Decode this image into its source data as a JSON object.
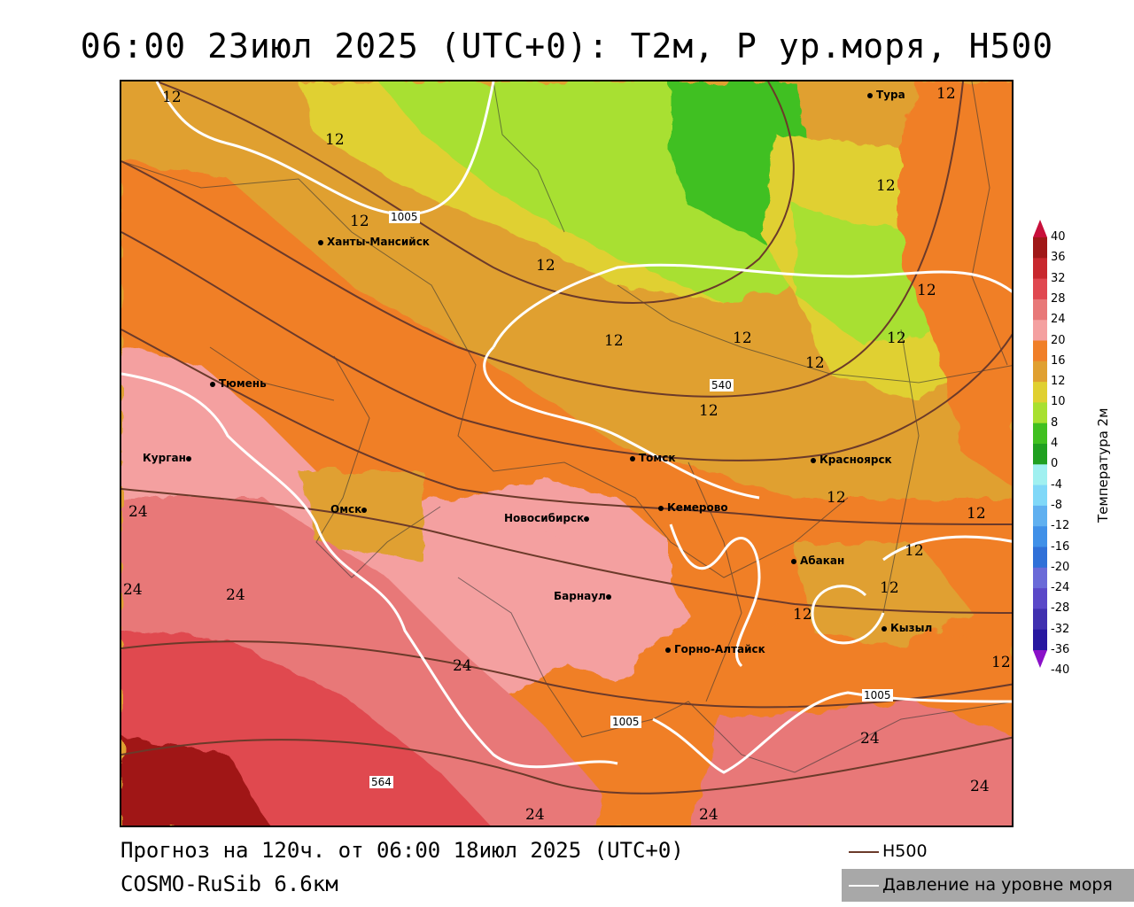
{
  "title": "06:00 23июл 2025 (UTC+0): T2м, P ур.моря, H500",
  "footer": {
    "forecast": "Прогноз на 120ч. от 06:00 18июл 2025 (UTC+0)",
    "model": "COSMO-RuSib 6.6км"
  },
  "legend": {
    "h500": "H500",
    "pressure": "Давление на уровне моря"
  },
  "colorbar": {
    "title": "Температура 2м",
    "levels": [
      "40",
      "36",
      "32",
      "28",
      "24",
      "20",
      "16",
      "12",
      "10",
      "8",
      "4",
      "0",
      "-4",
      "-8",
      "-12",
      "-16",
      "-20",
      "-24",
      "-28",
      "-32",
      "-36",
      "-40"
    ],
    "colors": [
      "#c8103a",
      "#a01818",
      "#c8282e",
      "#e04850",
      "#e87878",
      "#f4a0a0",
      "#f07f28",
      "#e0a030",
      "#e0d030",
      "#a8e030",
      "#40c020",
      "#20a020",
      "#a0f0f0",
      "#80d8f8",
      "#60b0f0",
      "#4090e8",
      "#3070d8",
      "#6a6ad8",
      "#5a48c8",
      "#4030b0",
      "#2818a0",
      "#8a10c8"
    ]
  },
  "cities": [
    {
      "name": "Тура"
    },
    {
      "name": "Ханты-Мансийск"
    },
    {
      "name": "Тюмень"
    },
    {
      "name": "Курган"
    },
    {
      "name": "Омск"
    },
    {
      "name": "Новосибирск"
    },
    {
      "name": "Томск"
    },
    {
      "name": "Кемерово"
    },
    {
      "name": "Красноярск"
    },
    {
      "name": "Абакан"
    },
    {
      "name": "Барнаул"
    },
    {
      "name": "Горно-Алтайск"
    },
    {
      "name": "Кызыл"
    }
  ],
  "contour_labels": {
    "t12": "12",
    "t24": "24",
    "p1005": "1005",
    "h540": "540",
    "h564": "564"
  }
}
